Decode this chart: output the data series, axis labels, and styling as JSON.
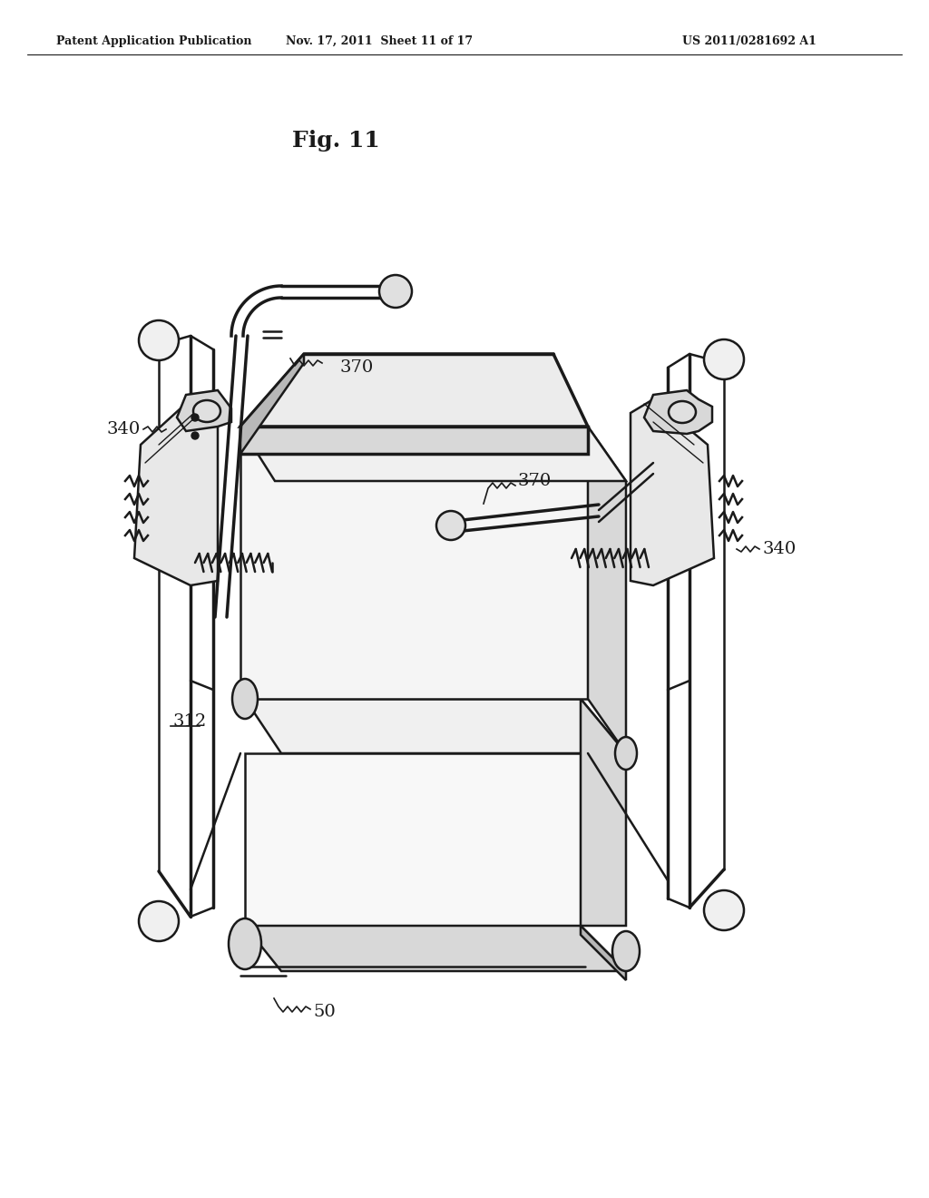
{
  "title": "Fig. 11",
  "header_left": "Patent Application Publication",
  "header_mid": "Nov. 17, 2011  Sheet 11 of 17",
  "header_right": "US 2011/0281692 A1",
  "label_370_top": "370",
  "label_340_left": "340",
  "label_340_right": "340",
  "label_370_right": "370",
  "label_312": "312",
  "label_50": "50",
  "bg_color": "#ffffff",
  "lc": "#1a1a1a",
  "lt": 1.0,
  "lm": 1.8,
  "lk": 2.5,
  "gray_light": "#f0f0f0",
  "gray_mid": "#d8d8d8",
  "gray_dark": "#b8b8b8"
}
